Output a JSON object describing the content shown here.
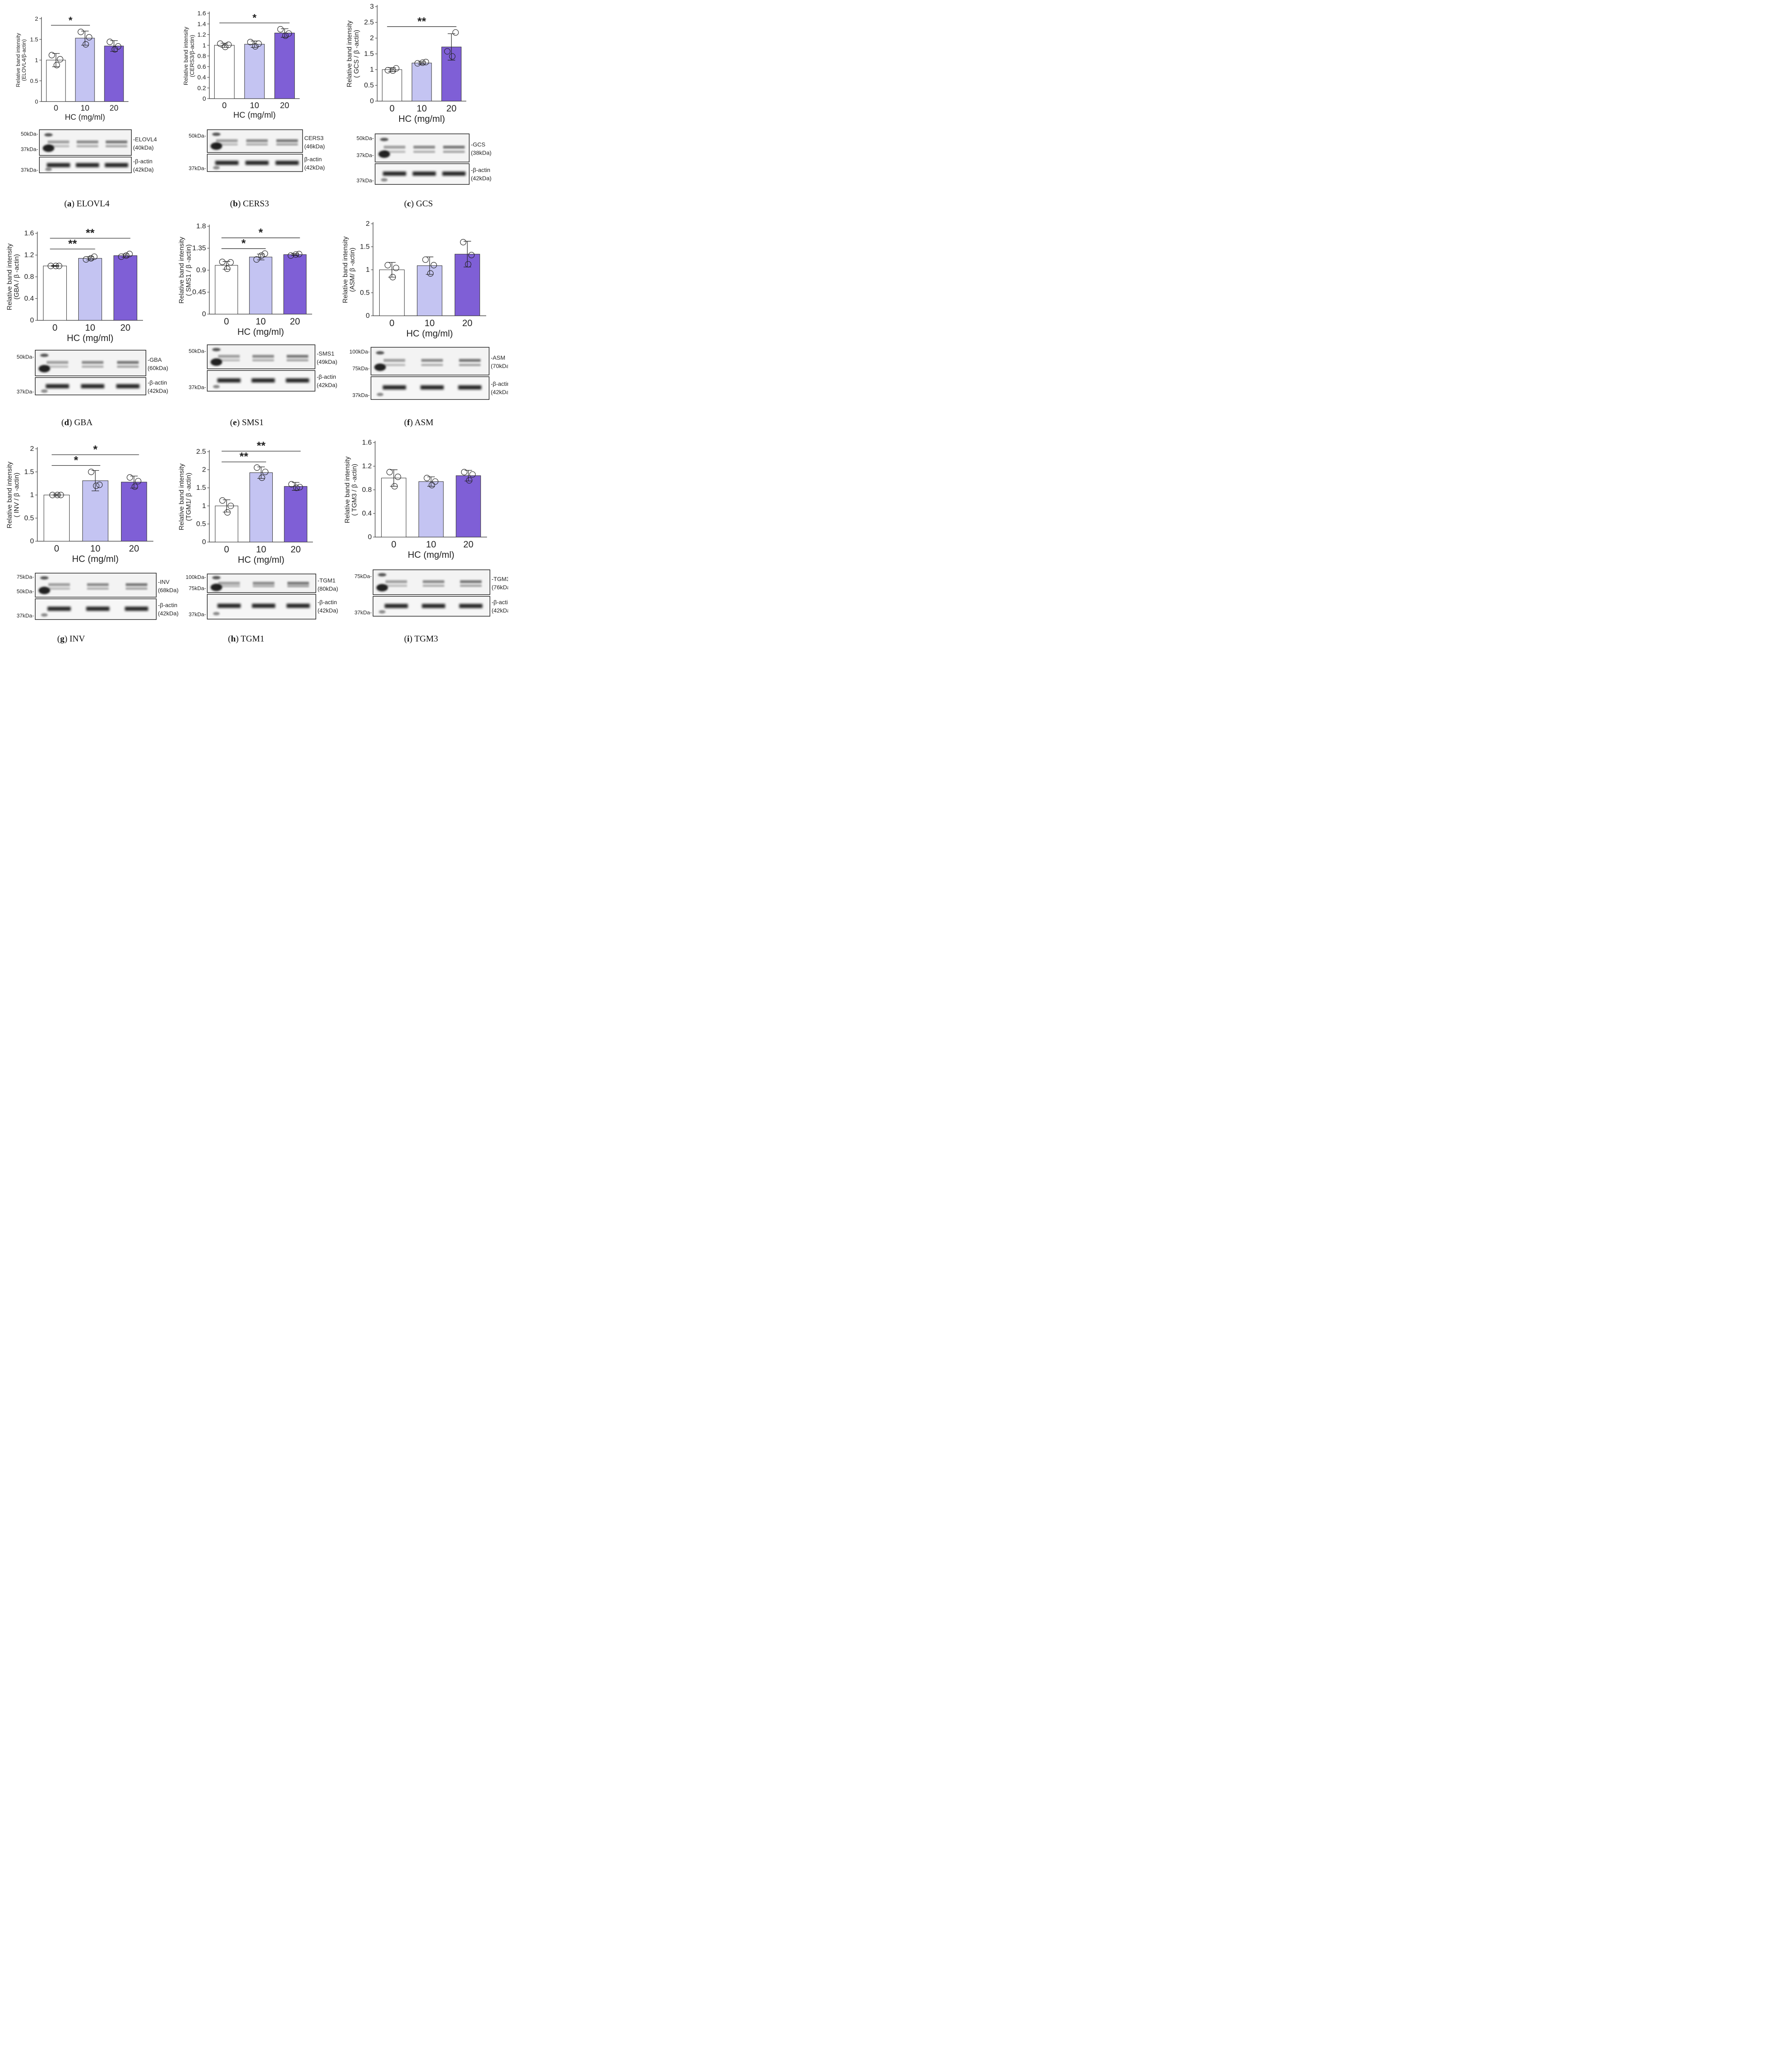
{
  "colors": {
    "g0": "#ffffff",
    "g10": "#c4c4f2",
    "g20": "#7f5fd6"
  },
  "xlabel": "HC (mg/ml)",
  "ylabel": "Relative band intensity",
  "chart_data": [
    {
      "type": "bar",
      "id": "a",
      "caption_letter": "a",
      "caption_text": "ELOVL4",
      "ylabel_sub": "(ELOVL4/β-actin)",
      "categories": [
        "0",
        "10",
        "20"
      ],
      "values": [
        1.0,
        1.53,
        1.34
      ],
      "errors": [
        0.16,
        0.17,
        0.13
      ],
      "points": [
        [
          1.12,
          0.88,
          1.02
        ],
        [
          1.68,
          1.38,
          1.55
        ],
        [
          1.44,
          1.26,
          1.33
        ]
      ],
      "ylim": [
        0,
        2
      ],
      "yticks": [
        "0",
        "0.5",
        "1",
        "1.5",
        "2"
      ],
      "significance": [
        {
          "from": 0,
          "to": 1,
          "label": "*"
        }
      ],
      "blot": {
        "target_label": "-ELOVL4",
        "target_mw": "(40kDa)",
        "actin_label": "-β-actin",
        "actin_mw": "(42kDa)",
        "target_markers": [
          "50kDa-",
          "37kDa-"
        ],
        "actin_markers": [
          "37kDa-"
        ]
      }
    },
    {
      "type": "bar",
      "id": "b",
      "caption_letter": "b",
      "caption_text": "CERS3",
      "ylabel_sub": "(CERS3/β-actin)",
      "categories": [
        "0",
        "10",
        "20"
      ],
      "values": [
        1.0,
        1.02,
        1.23
      ],
      "errors": [
        0.04,
        0.06,
        0.08
      ],
      "points": [
        [
          1.03,
          0.97,
          1.01
        ],
        [
          1.06,
          0.98,
          1.03
        ],
        [
          1.3,
          1.18,
          1.22
        ]
      ],
      "ylim": [
        0,
        1.6
      ],
      "yticks": [
        "0",
        "0.2",
        "0.4",
        "0.6",
        "0.8",
        "1",
        "1.2",
        "1.4",
        "1.6"
      ],
      "significance": [
        {
          "from": 0,
          "to": 2,
          "label": "*"
        }
      ],
      "blot": {
        "target_label": "CERS3",
        "target_mw": "(46kDa)",
        "actin_label": "β-actin",
        "actin_mw": "(42kDa)",
        "target_markers": [
          "50kDa-"
        ],
        "actin_markers": [
          "37kDa-"
        ]
      }
    },
    {
      "type": "bar",
      "id": "c",
      "caption_letter": "c",
      "caption_text": "GCS",
      "ylabel_sub": "( GCS / β -actin)",
      "categories": [
        "0",
        "10",
        "20"
      ],
      "values": [
        1.0,
        1.21,
        1.72
      ],
      "errors": [
        0.06,
        0.04,
        0.42
      ],
      "points": [
        [
          0.98,
          0.97,
          1.04
        ],
        [
          1.2,
          1.22,
          1.24
        ],
        [
          1.58,
          1.42,
          2.18
        ]
      ],
      "ylim": [
        0,
        3
      ],
      "yticks": [
        "0",
        "0.5",
        "1",
        "1.5",
        "2",
        "2.5",
        "3"
      ],
      "significance": [
        {
          "from": 0,
          "to": 2,
          "label": "**"
        }
      ],
      "blot": {
        "target_label": "-GCS",
        "target_mw": "(38kDa)",
        "actin_label": "-β-actin",
        "actin_mw": "(42kDa)",
        "target_markers": [
          "50kDa-",
          "37kDa-"
        ],
        "actin_markers": [
          "37kDa-"
        ]
      }
    },
    {
      "type": "bar",
      "id": "d",
      "caption_letter": "d",
      "caption_text": "GBA",
      "ylabel_sub": "(GBA / β -actin)",
      "categories": [
        "0",
        "10",
        "20"
      ],
      "values": [
        1.0,
        1.14,
        1.19
      ],
      "errors": [
        0.01,
        0.03,
        0.03
      ],
      "points": [
        [
          1.0,
          1.0,
          1.0
        ],
        [
          1.12,
          1.14,
          1.17
        ],
        [
          1.17,
          1.19,
          1.22
        ]
      ],
      "ylim": [
        0,
        1.6
      ],
      "yticks": [
        "0",
        "0.4",
        "0.8",
        "1.2",
        "1.6"
      ],
      "significance": [
        {
          "from": 0,
          "to": 1,
          "label": "**"
        },
        {
          "from": 0,
          "to": 2,
          "label": "**"
        }
      ],
      "blot": {
        "target_label": "-GBA",
        "target_mw": "(60kDa)",
        "actin_label": "-β-actin",
        "actin_mw": "(42kDa)",
        "target_markers": [
          "50kDa-"
        ],
        "actin_markers": [
          "37kDa-"
        ]
      }
    },
    {
      "type": "bar",
      "id": "e",
      "caption_letter": "e",
      "caption_text": "SMS1",
      "ylabel_sub": "( SMS1 / β -actin)",
      "categories": [
        "0",
        "10",
        "20"
      ],
      "values": [
        1.0,
        1.17,
        1.22
      ],
      "errors": [
        0.08,
        0.06,
        0.02
      ],
      "points": [
        [
          1.07,
          0.93,
          1.06
        ],
        [
          1.12,
          1.2,
          1.24
        ],
        [
          1.2,
          1.22,
          1.23
        ]
      ],
      "ylim": [
        0,
        1.8
      ],
      "yticks": [
        "0",
        "0.45",
        "0.9",
        "1.35",
        "1.8"
      ],
      "significance": [
        {
          "from": 0,
          "to": 1,
          "label": "*"
        },
        {
          "from": 0,
          "to": 2,
          "label": "*"
        }
      ],
      "blot": {
        "target_label": "-SMS1",
        "target_mw": "(49kDa)",
        "actin_label": "-β-actin",
        "actin_mw": "(42kDa)",
        "target_markers": [
          "50kDa-"
        ],
        "actin_markers": [
          "37kDa-"
        ]
      }
    },
    {
      "type": "bar",
      "id": "f",
      "caption_letter": "f",
      "caption_text": "ASM",
      "ylabel_sub": "(ASM/ β -actin)",
      "categories": [
        "0",
        "10",
        "20"
      ],
      "values": [
        1.0,
        1.09,
        1.34
      ],
      "errors": [
        0.16,
        0.19,
        0.28
      ],
      "points": [
        [
          1.1,
          0.84,
          1.04
        ],
        [
          1.22,
          0.92,
          1.1
        ],
        [
          1.6,
          1.12,
          1.32
        ]
      ],
      "ylim": [
        0,
        2
      ],
      "yticks": [
        "0",
        "0.5",
        "1",
        "1.5",
        "2"
      ],
      "significance": [],
      "blot": {
        "target_label": "-ASM",
        "target_mw": "(70kDa)",
        "actin_label": "-β-actin",
        "actin_mw": "(42kDa)",
        "target_markers": [
          "100kDa-",
          "75kDa-"
        ],
        "actin_markers": [
          "37kDa-"
        ]
      }
    },
    {
      "type": "bar",
      "id": "g",
      "caption_letter": "g",
      "caption_text": "INV",
      "ylabel_sub": "( INV / β -actin)",
      "categories": [
        "0",
        "10",
        "20"
      ],
      "values": [
        1.0,
        1.31,
        1.28
      ],
      "errors": [
        0.02,
        0.22,
        0.13
      ],
      "points": [
        [
          1.0,
          1.0,
          1.0
        ],
        [
          1.5,
          1.2,
          1.22
        ],
        [
          1.38,
          1.18,
          1.3
        ]
      ],
      "ylim": [
        0,
        2
      ],
      "yticks": [
        "0",
        "0.5",
        "1",
        "1.5",
        "2"
      ],
      "significance": [
        {
          "from": 0,
          "to": 1,
          "label": "*"
        },
        {
          "from": 0,
          "to": 2,
          "label": "*"
        }
      ],
      "blot": {
        "target_label": "-INV",
        "target_mw": "(68kDa)",
        "actin_label": "-β-actin",
        "actin_mw": "(42kDa)",
        "target_markers": [
          "75kDa-",
          "50kDa-"
        ],
        "actin_markers": [
          "37kDa-"
        ]
      }
    },
    {
      "type": "bar",
      "id": "h",
      "caption_letter": "h",
      "caption_text": "TGM1",
      "ylabel_sub": "(TGM1/ β -actin)",
      "categories": [
        "0",
        "10",
        "20"
      ],
      "values": [
        1.0,
        1.92,
        1.54
      ],
      "errors": [
        0.17,
        0.16,
        0.11
      ],
      "points": [
        [
          1.15,
          0.82,
          1.0
        ],
        [
          2.06,
          1.78,
          1.94
        ],
        [
          1.6,
          1.5,
          1.52
        ]
      ],
      "ylim": [
        0,
        2.5
      ],
      "yticks": [
        "0",
        "0.5",
        "1",
        "1.5",
        "2",
        "2.5"
      ],
      "significance": [
        {
          "from": 0,
          "to": 1,
          "label": "**"
        },
        {
          "from": 0,
          "to": 2,
          "label": "**"
        }
      ],
      "blot": {
        "target_label": "-TGM1",
        "target_mw": "(80kDa)",
        "actin_label": "-β-actin",
        "actin_mw": "(42kDa)",
        "target_markers": [
          "100kDa-",
          "75kDa-"
        ],
        "actin_markers": [
          "37kDa-"
        ]
      }
    },
    {
      "type": "bar",
      "id": "i",
      "caption_letter": "i",
      "caption_text": "TGM3",
      "ylabel_sub": "( TGM3 / β -actin)",
      "categories": [
        "0",
        "10",
        "20"
      ],
      "values": [
        1.0,
        0.94,
        1.04
      ],
      "errors": [
        0.14,
        0.08,
        0.09
      ],
      "points": [
        [
          1.1,
          0.86,
          1.02
        ],
        [
          1.0,
          0.88,
          0.94
        ],
        [
          1.1,
          0.96,
          1.06
        ]
      ],
      "ylim": [
        0,
        1.6
      ],
      "yticks": [
        "0",
        "0.4",
        "0.8",
        "1.2",
        "1.6"
      ],
      "significance": [],
      "blot": {
        "target_label": "-TGM3",
        "target_mw": "(76kDa)",
        "actin_label": "-β-actin",
        "actin_mw": "(42kDa)",
        "target_markers": [
          "75kDa-"
        ],
        "actin_markers": [
          "37kDa-"
        ]
      }
    }
  ]
}
